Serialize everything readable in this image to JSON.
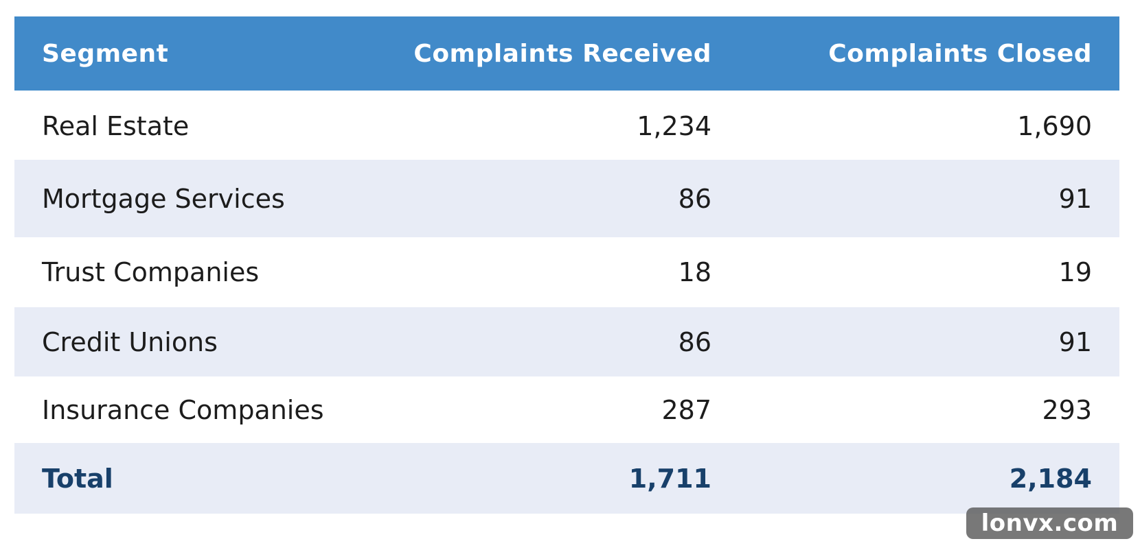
{
  "table": {
    "columns": [
      "Segment",
      "Complaints Received",
      "Complaints Closed"
    ],
    "rows": [
      {
        "segment": "Real Estate",
        "received": "1,234",
        "closed": "1,690"
      },
      {
        "segment": "Mortgage Services",
        "received": "86",
        "closed": "91"
      },
      {
        "segment": "Trust Companies",
        "received": "18",
        "closed": "19"
      },
      {
        "segment": "Credit Unions",
        "received": "86",
        "closed": "91"
      },
      {
        "segment": "Insurance Companies",
        "received": "287",
        "closed": "293"
      }
    ],
    "total": {
      "segment": "Total",
      "received": "1,711",
      "closed": "2,184"
    }
  },
  "watermark": "lonvx.com",
  "colors": {
    "header_bg": "#418ac9",
    "stripe_bg": "#e8ecf6",
    "total_text": "#18406a"
  }
}
